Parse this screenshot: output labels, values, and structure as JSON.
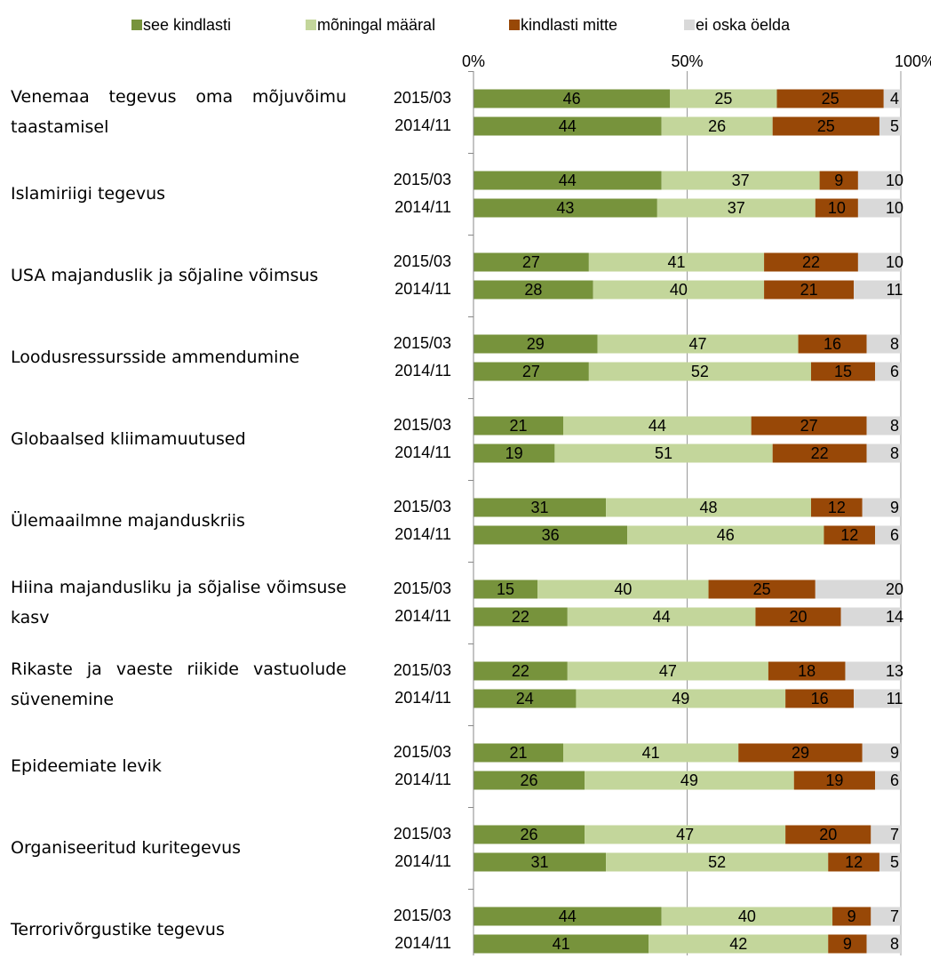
{
  "chart_data": {
    "type": "stacked-bar-horizontal",
    "groups": [
      "Venemaa tegevus oma mõjuvõimu taastamisel",
      "Islamiriigi tegevus",
      "USA majanduslik ja sõjaline võimsus",
      "Loodusressursside ammendumine",
      "Globaalsed kliimamuutused",
      "Ülemaailmne majanduskriis",
      "Hiina majandusliku ja sõjalise võimsuse kasv",
      "Rikaste ja vaeste riikide vastuolude süvenemine",
      "Epideemiate levik",
      "Organiseeritud kuritegevus",
      "Terrorivõrgustike tegevus"
    ],
    "categories": [
      "2015/03",
      "2014/11",
      "2015/03",
      "2014/11",
      "2015/03",
      "2014/11",
      "2015/03",
      "2014/11",
      "2015/03",
      "2014/11",
      "2015/03",
      "2014/11",
      "2015/03",
      "2014/11",
      "2015/03",
      "2014/11",
      "2015/03",
      "2014/11",
      "2015/03",
      "2014/11",
      "2015/03",
      "2014/11"
    ],
    "series": [
      {
        "name": "see kindlasti",
        "color": "#77933c",
        "values": [
          46,
          44,
          44,
          43,
          27,
          28,
          29,
          27,
          21,
          19,
          31,
          36,
          15,
          22,
          22,
          24,
          21,
          26,
          26,
          31,
          44,
          41
        ]
      },
      {
        "name": "mõningal määral",
        "color": "#c3d69b",
        "values": [
          25,
          26,
          37,
          37,
          41,
          40,
          47,
          52,
          44,
          51,
          48,
          46,
          40,
          44,
          47,
          49,
          41,
          49,
          47,
          52,
          40,
          42
        ]
      },
      {
        "name": "kindlasti mitte",
        "color": "#984807",
        "values": [
          25,
          25,
          9,
          10,
          22,
          21,
          16,
          15,
          27,
          22,
          12,
          12,
          25,
          20,
          18,
          16,
          29,
          19,
          20,
          12,
          9,
          9
        ]
      },
      {
        "name": "ei oska öelda",
        "color": "#d9d9d9",
        "values": [
          4,
          5,
          10,
          10,
          10,
          11,
          8,
          6,
          8,
          8,
          9,
          6,
          20,
          14,
          13,
          11,
          9,
          6,
          7,
          5,
          7,
          8
        ]
      }
    ],
    "xlim": [
      0,
      100
    ],
    "xticks": [
      {
        "value": 0,
        "label": "0%"
      },
      {
        "value": 50,
        "label": "50%"
      },
      {
        "value": 100,
        "label": "100%"
      }
    ],
    "grid": true,
    "legend": "top"
  }
}
